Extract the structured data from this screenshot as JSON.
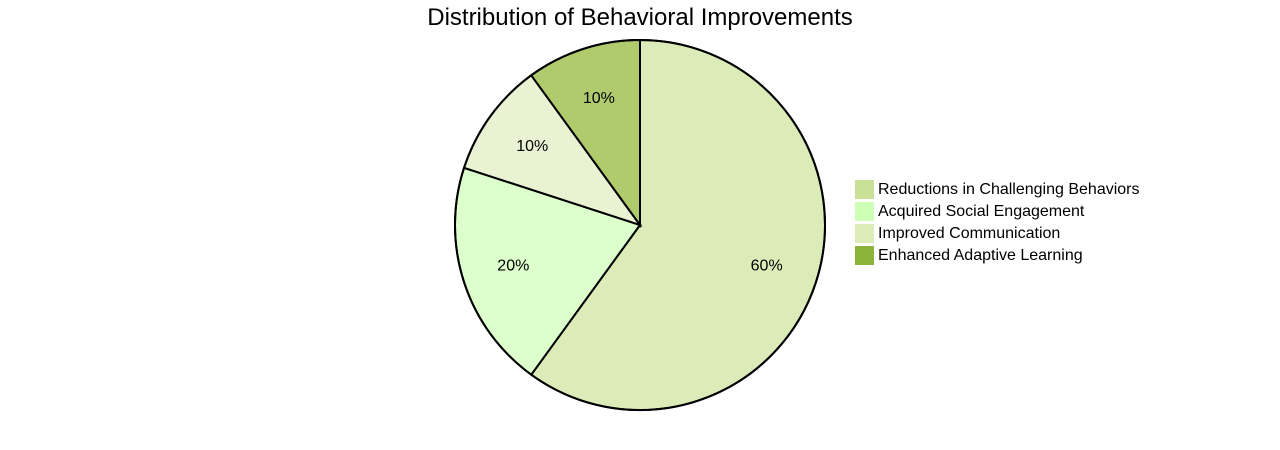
{
  "chart_data": {
    "type": "pie",
    "title": "Distribution of Behavioral Improvements",
    "slices": [
      {
        "label": "Reductions in Challenging Behaviors",
        "value": 60,
        "display": "60%",
        "color": "#dbecb8"
      },
      {
        "label": "Acquired Social Engagement",
        "value": 20,
        "display": "20%",
        "color": "#dcffcc"
      },
      {
        "label": "Improved Communication",
        "value": 10,
        "display": "10%",
        "color": "#e9f3d3"
      },
      {
        "label": "Enhanced Adaptive Learning",
        "value": 10,
        "display": "10%",
        "color": "#b0cb6e"
      }
    ],
    "legend": {
      "placement": "right",
      "entries": [
        {
          "label": "Reductions in Challenging Behaviors",
          "color": "#c9e197"
        },
        {
          "label": "Acquired Social Engagement",
          "color": "#ccffb3"
        },
        {
          "label": "Improved Communication",
          "color": "#dbecb8"
        },
        {
          "label": "Enhanced Adaptive Learning",
          "color": "#8cb33a"
        }
      ]
    }
  }
}
